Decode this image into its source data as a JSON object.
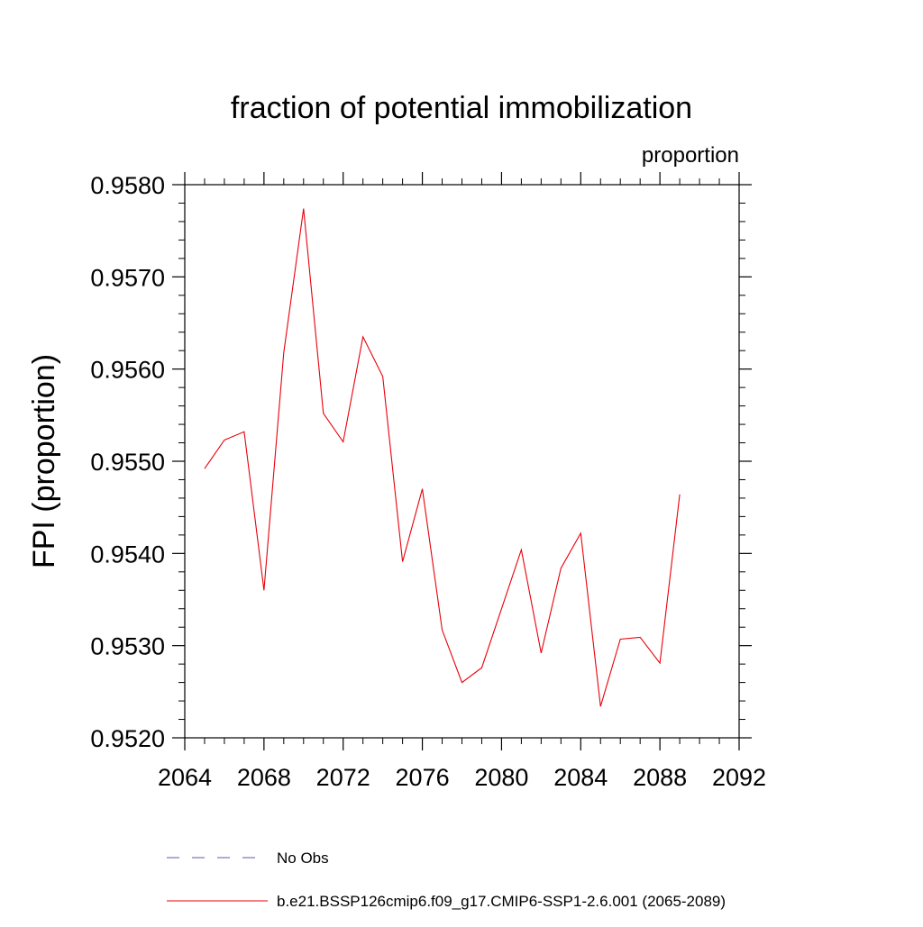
{
  "chart_data": {
    "type": "line",
    "title": "fraction of potential immobilization",
    "units_label": "proportion",
    "ylabel": "FPI  (proportion)",
    "xlabel": "",
    "xlim": [
      2064,
      2092
    ],
    "ylim": [
      0.952,
      0.958
    ],
    "x_ticks": [
      2064,
      2068,
      2072,
      2076,
      2080,
      2084,
      2088,
      2092
    ],
    "x_tick_labels": [
      "2064",
      "2068",
      "2072",
      "2076",
      "2080",
      "2084",
      "2088",
      "2092"
    ],
    "y_ticks": [
      0.952,
      0.953,
      0.954,
      0.955,
      0.956,
      0.957,
      0.958
    ],
    "y_tick_labels": [
      "0.9520",
      "0.9530",
      "0.9540",
      "0.9550",
      "0.9560",
      "0.9570",
      "0.9580"
    ],
    "grid": false,
    "legend_position": "bottom",
    "series": [
      {
        "name": "b.e21.BSSP126cmip6.f09_g17.CMIP6-SSP1-2.6.001 (2065-2089)",
        "color": "#e8000b",
        "style": "solid",
        "x": [
          2065,
          2066,
          2067,
          2068,
          2069,
          2070,
          2071,
          2072,
          2073,
          2074,
          2075,
          2076,
          2077,
          2078,
          2079,
          2080,
          2081,
          2082,
          2083,
          2084,
          2085,
          2086,
          2087,
          2088,
          2089
        ],
        "values": [
          0.95492,
          0.95523,
          0.95532,
          0.9536,
          0.95618,
          0.95774,
          0.95552,
          0.95521,
          0.95635,
          0.95592,
          0.95391,
          0.9547,
          0.95317,
          0.9526,
          0.95276,
          0.9534,
          0.95404,
          0.95292,
          0.95384,
          0.95422,
          0.95234,
          0.95307,
          0.95309,
          0.95281,
          0.95464
        ]
      }
    ],
    "legend": [
      {
        "label": "No Obs",
        "color": "#5a5aa8",
        "style": "dashed"
      },
      {
        "label": "b.e21.BSSP126cmip6.f09_g17.CMIP6-SSP1-2.6.001 (2065-2089)",
        "color": "#e8000b",
        "style": "solid"
      }
    ]
  }
}
